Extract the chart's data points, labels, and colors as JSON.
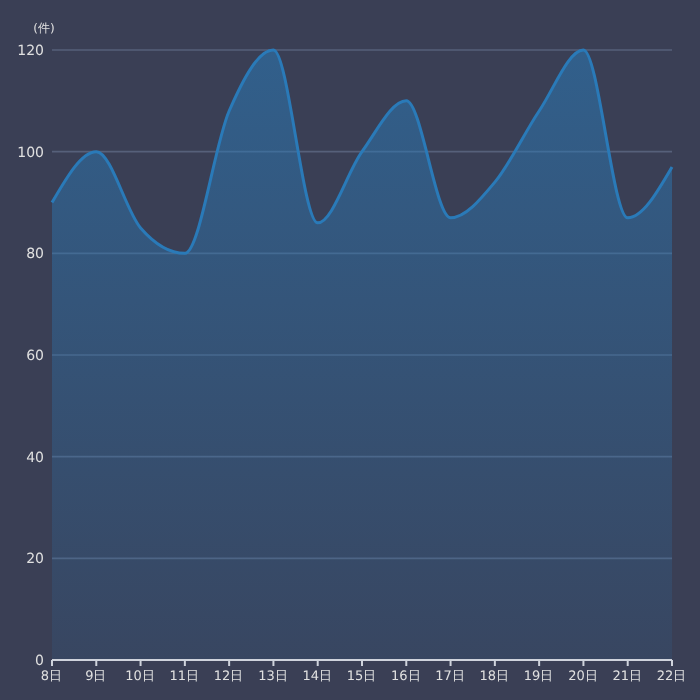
{
  "chart_data": {
    "type": "area",
    "ylabel": "(件)",
    "categories": [
      "8日",
      "9日",
      "10日",
      "11日",
      "12日",
      "13日",
      "14日",
      "15日",
      "16日",
      "17日",
      "18日",
      "19日",
      "20日",
      "21日",
      "22日"
    ],
    "series": [
      {
        "color": "#2a7ab8",
        "values": [
          90,
          100,
          85,
          80,
          108,
          120,
          86,
          100,
          110,
          87,
          94,
          108,
          120,
          87,
          97
        ]
      }
    ],
    "ylim": [
      0,
      120
    ],
    "yticks": [
      0,
      20,
      40,
      60,
      80,
      100,
      120
    ],
    "grid": "y"
  }
}
